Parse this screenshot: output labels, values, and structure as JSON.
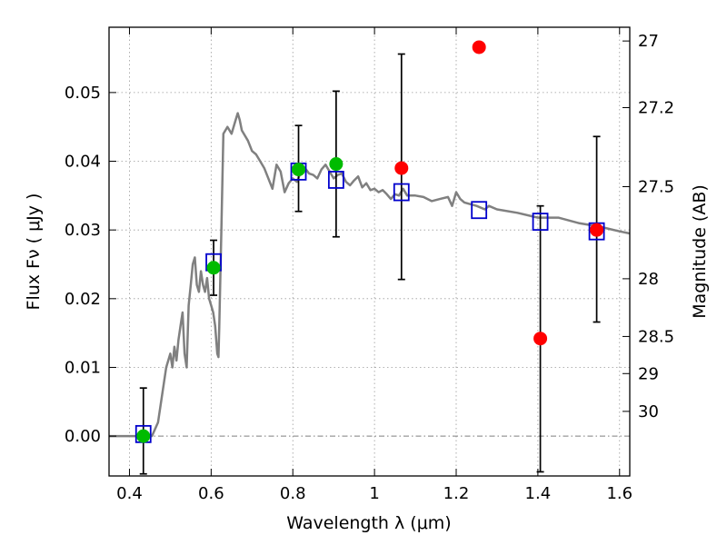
{
  "chart_data": {
    "type": "scatter",
    "xlabel": "Wavelength  λ (μm)",
    "ylabel": "Flux  Fν  ( μJy )",
    "y2label": "Magnitude (AB)",
    "xlim": [
      0.35,
      1.625
    ],
    "ylim": [
      -0.0058,
      0.0595
    ],
    "grid": true,
    "xticks": [
      0.4,
      0.6,
      0.8,
      1.0,
      1.2,
      1.4,
      1.6
    ],
    "xtick_labels": [
      "0.4",
      "0.6",
      "0.8",
      "1",
      "1.2",
      "1.4",
      "1.6"
    ],
    "yticks": [
      0.0,
      0.01,
      0.02,
      0.03,
      0.04,
      0.05
    ],
    "ytick_labels": [
      "0.00",
      "0.01",
      "0.02",
      "0.03",
      "0.04",
      "0.05"
    ],
    "y2ticks": [
      {
        "label": "27",
        "flux": 0.0575
      },
      {
        "label": "27.2",
        "flux": 0.0478
      },
      {
        "label": "27.5",
        "flux": 0.0363
      },
      {
        "label": "28",
        "flux": 0.0229
      },
      {
        "label": "28.5",
        "flux": 0.0145
      },
      {
        "label": "29",
        "flux": 0.0091
      },
      {
        "label": "30",
        "flux": 0.0036
      }
    ],
    "series": [
      {
        "type": "line",
        "color": "#808080",
        "x": [
          0.35,
          0.44,
          0.455,
          0.47,
          0.48,
          0.49,
          0.5,
          0.505,
          0.51,
          0.515,
          0.52,
          0.525,
          0.53,
          0.535,
          0.54,
          0.545,
          0.55,
          0.555,
          0.56,
          0.565,
          0.57,
          0.575,
          0.58,
          0.585,
          0.59,
          0.595,
          0.6,
          0.605,
          0.61,
          0.615,
          0.618,
          0.62,
          0.625,
          0.63,
          0.64,
          0.65,
          0.66,
          0.665,
          0.67,
          0.675,
          0.68,
          0.69,
          0.7,
          0.71,
          0.72,
          0.73,
          0.74,
          0.75,
          0.76,
          0.77,
          0.78,
          0.79,
          0.8,
          0.81,
          0.82,
          0.83,
          0.84,
          0.85,
          0.86,
          0.87,
          0.88,
          0.89,
          0.9,
          0.91,
          0.92,
          0.93,
          0.94,
          0.95,
          0.96,
          0.97,
          0.98,
          0.99,
          1.0,
          1.01,
          1.02,
          1.03,
          1.04,
          1.05,
          1.06,
          1.07,
          1.08,
          1.1,
          1.12,
          1.14,
          1.16,
          1.18,
          1.19,
          1.2,
          1.21,
          1.22,
          1.25,
          1.27,
          1.28,
          1.3,
          1.35,
          1.4,
          1.45,
          1.5,
          1.55,
          1.6,
          1.625
        ],
        "y": [
          0.0,
          0.0,
          0.0,
          0.002,
          0.006,
          0.01,
          0.012,
          0.01,
          0.013,
          0.011,
          0.014,
          0.016,
          0.018,
          0.012,
          0.01,
          0.019,
          0.022,
          0.025,
          0.026,
          0.022,
          0.021,
          0.024,
          0.022,
          0.021,
          0.023,
          0.02,
          0.019,
          0.018,
          0.016,
          0.012,
          0.0115,
          0.016,
          0.03,
          0.044,
          0.045,
          0.044,
          0.046,
          0.047,
          0.046,
          0.0445,
          0.044,
          0.043,
          0.0415,
          0.041,
          0.04,
          0.039,
          0.0375,
          0.036,
          0.0395,
          0.0385,
          0.0355,
          0.0368,
          0.0375,
          0.037,
          0.0385,
          0.039,
          0.0382,
          0.038,
          0.0375,
          0.0388,
          0.0395,
          0.0385,
          0.0375,
          0.038,
          0.0382,
          0.037,
          0.0365,
          0.0372,
          0.0378,
          0.0362,
          0.0368,
          0.0358,
          0.036,
          0.0355,
          0.0358,
          0.0352,
          0.0345,
          0.0352,
          0.035,
          0.036,
          0.035,
          0.035,
          0.0348,
          0.0342,
          0.0345,
          0.0348,
          0.0335,
          0.0355,
          0.0345,
          0.034,
          0.0335,
          0.033,
          0.0335,
          0.033,
          0.0325,
          0.0318,
          0.0318,
          0.031,
          0.0305,
          0.0298,
          0.0295
        ]
      },
      {
        "type": "errorbar",
        "color": "#000000",
        "points": [
          {
            "x": 0.434,
            "y": 0.0,
            "lo": -0.0055,
            "hi": 0.007
          },
          {
            "x": 0.606,
            "y": 0.0245,
            "lo": 0.0205,
            "hi": 0.0285
          },
          {
            "x": 0.814,
            "y": 0.0388,
            "lo": 0.0327,
            "hi": 0.0452
          },
          {
            "x": 0.906,
            "y": 0.0396,
            "lo": 0.029,
            "hi": 0.0502
          },
          {
            "x": 1.066,
            "y": 0.039,
            "lo": 0.0228,
            "hi": 0.0556
          },
          {
            "x": 1.256,
            "y": 0.0566,
            "lo": 0.0595,
            "hi": 0.0595
          },
          {
            "x": 1.406,
            "y": 0.0142,
            "lo": -0.0052,
            "hi": 0.0335
          },
          {
            "x": 1.544,
            "y": 0.03,
            "lo": 0.0166,
            "hi": 0.0436
          }
        ]
      },
      {
        "type": "scatter",
        "marker": "open-square",
        "color": "#0000cc",
        "points": [
          {
            "x": 0.434,
            "y": 0.0003
          },
          {
            "x": 0.606,
            "y": 0.0253
          },
          {
            "x": 0.814,
            "y": 0.0385
          },
          {
            "x": 0.906,
            "y": 0.0373
          },
          {
            "x": 1.066,
            "y": 0.0355
          },
          {
            "x": 1.256,
            "y": 0.0329
          },
          {
            "x": 1.406,
            "y": 0.0312
          },
          {
            "x": 1.544,
            "y": 0.0298
          }
        ]
      },
      {
        "type": "scatter",
        "marker": "filled-circle",
        "color": "#00bb00",
        "points": [
          {
            "x": 0.434,
            "y": 0.0
          },
          {
            "x": 0.606,
            "y": 0.0245
          },
          {
            "x": 0.814,
            "y": 0.0388
          },
          {
            "x": 0.906,
            "y": 0.0396
          }
        ]
      },
      {
        "type": "scatter",
        "marker": "filled-circle",
        "color": "#ff0000",
        "points": [
          {
            "x": 1.066,
            "y": 0.039
          },
          {
            "x": 1.256,
            "y": 0.0566
          },
          {
            "x": 1.406,
            "y": 0.0142
          },
          {
            "x": 1.544,
            "y": 0.03
          }
        ]
      }
    ],
    "zero_line": {
      "y": 0.0,
      "style": "dash-dot",
      "color": "#808080"
    }
  }
}
